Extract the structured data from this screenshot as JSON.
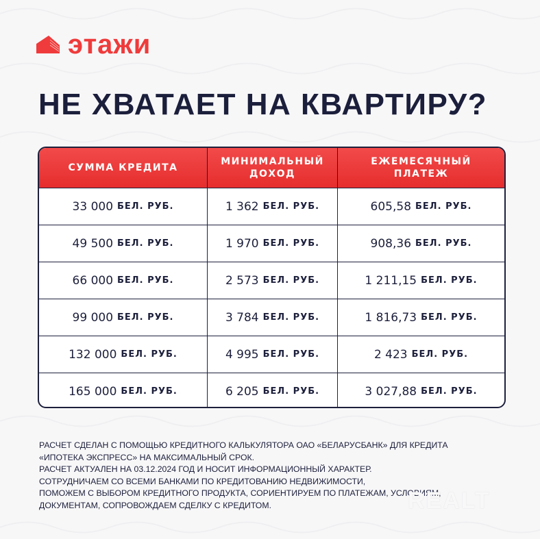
{
  "brand": {
    "name": "этажи",
    "color": "#ef3b3b"
  },
  "title": "НЕ ХВАТАЕТ НА КВАРТИРУ?",
  "table": {
    "headers": [
      "СУММА КРЕДИТА",
      "МИНИМАЛЬНЫЙ ДОХОД",
      "ЕЖЕМЕСЯЧНЫЙ ПЛАТЕЖ"
    ],
    "unit": "БЕЛ. РУБ.",
    "rows": [
      [
        "33 000",
        "1 362",
        "605,58"
      ],
      [
        "49 500",
        "1 970",
        "908,36"
      ],
      [
        "66 000",
        "2 573",
        "1 211,15"
      ],
      [
        "99 000",
        "3 784",
        "1 816,73"
      ],
      [
        "132 000",
        "4 995",
        "2 423"
      ],
      [
        "165 000",
        "6 205",
        "3 027,88"
      ]
    ]
  },
  "notes": [
    "РАСЧЕТ СДЕЛАН С ПОМОЩЬЮ КРЕДИТНОГО КАЛЬКУЛЯТОРА ОАО «БЕЛАРУСБАНК» ДЛЯ КРЕДИТА",
    "«ИПОТЕКА ЭКСПРЕСС» НА МАКСИМАЛЬНЫЙ СРОК.",
    "РАСЧЕТ АКТУАЛЕН НА 03.12.2024 ГОД И НОСИТ ИНФОРМАЦИОННЫЙ ХАРАКТЕР.",
    "СОТРУДНИЧАЕМ СО ВСЕМИ БАНКАМИ ПО КРЕДИТОВАНИЮ НЕДВИЖИМОСТИ,",
    "ПОМОЖЕМ С ВЫБОРОМ КРЕДИТНОГО ПРОДУКТА, СОРИЕНТИРУЕМ ПО ПЛАТЕЖАМ, УСЛОВИЯМ,",
    "ДОКУМЕНТАМ, СОПРОВОЖДАЕМ СДЕЛКУ С КРЕДИТОМ."
  ],
  "watermark": "REALT"
}
